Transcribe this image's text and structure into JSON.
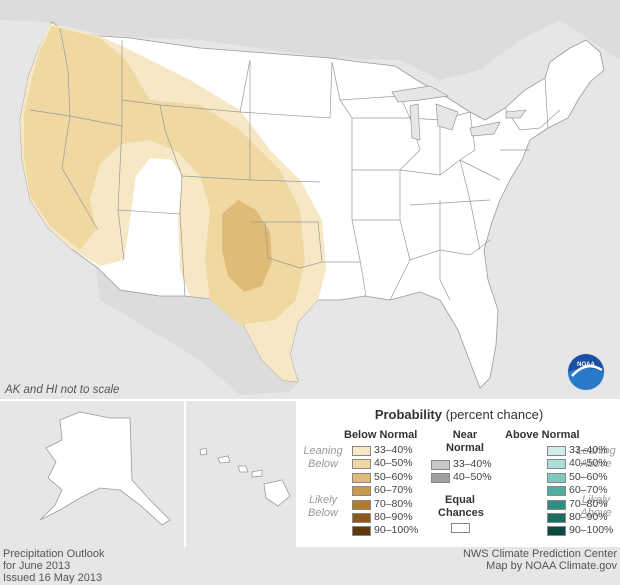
{
  "map": {
    "scale_note": "AK and HI not to scale",
    "logo_text": "NOAA",
    "footer_left": [
      "Precipitation Outlook",
      "for June 2013",
      "Issued 16 May 2013"
    ],
    "footer_right": [
      "NWS Climate Prediction Center",
      "Map by NOAA Climate.gov"
    ]
  },
  "legend": {
    "title_bold": "Probability",
    "title_rest": " (percent chance)",
    "below_normal": {
      "heading": "Below Normal",
      "leaning": [
        "Leaning",
        "Below"
      ],
      "likely": [
        "Likely",
        "Below"
      ],
      "ranges": [
        "33–40%",
        "40–50%",
        "50–60%",
        "60–70%",
        "70–80%",
        "80–90%",
        "90–100%"
      ],
      "colors": [
        "#f7e8c5",
        "#efd8a2",
        "#e0bb77",
        "#c99a4c",
        "#b07a30",
        "#8c5a1c",
        "#5e3a0e"
      ]
    },
    "near_normal": {
      "heading": [
        "Near",
        "Normal"
      ],
      "ranges": [
        "33–40%",
        "40–50%"
      ],
      "colors": [
        "#c8c8c8",
        "#a0a0a0"
      ]
    },
    "equal_chances": {
      "label": [
        "Equal",
        "Chances"
      ],
      "color": "#ffffff"
    },
    "above_normal": {
      "heading": "Above Normal",
      "leaning": [
        "Leaning",
        "Above"
      ],
      "likely": [
        "Likely",
        "Above"
      ],
      "ranges": [
        "33–40%",
        "40–50%",
        "50–60%",
        "60–70%",
        "70–80%",
        "80–90%",
        "90–100%"
      ],
      "colors": [
        "#cfeeea",
        "#a8e0d7",
        "#7dcbbe",
        "#4fae9f",
        "#2d8f80",
        "#1a6e61",
        "#0a4a40"
      ]
    }
  }
}
